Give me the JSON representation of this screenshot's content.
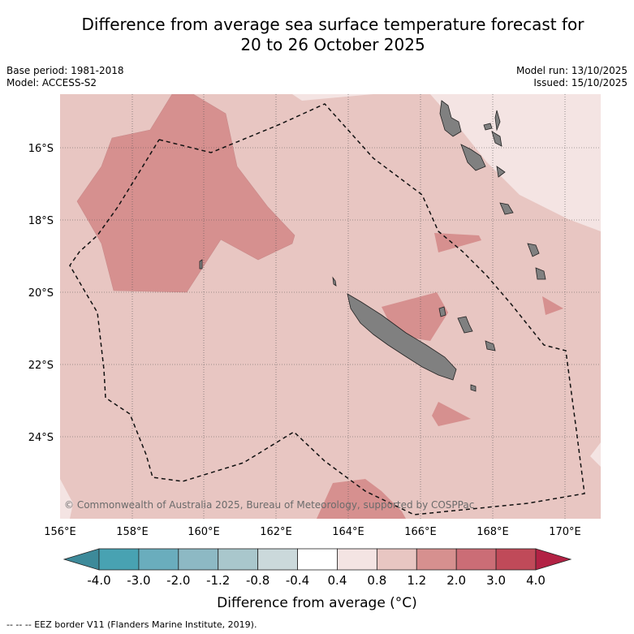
{
  "title_line1": "Difference from average sea surface temperature forecast for",
  "title_line2": "20 to 26 October 2025",
  "base_period": "Base period: 1981-2018",
  "model": "Model: ACCESS-S2",
  "model_run": "Model run: 13/10/2025",
  "issued": "Issued: 15/10/2025",
  "lon_labels": [
    "156°E",
    "158°E",
    "160°E",
    "162°E",
    "164°E",
    "166°E",
    "168°E",
    "170°E"
  ],
  "lat_labels": [
    "16°S",
    "18°S",
    "20°S",
    "22°S",
    "24°S"
  ],
  "copyright": "© Commonwealth of Australia 2025, Bureau of Meteorology, supported by COSPPac",
  "colorbar": {
    "title": "Difference from average (°C)",
    "tick_labels": [
      "-4.0",
      "-3.0",
      "-2.0",
      "-1.2",
      "-0.8",
      "-0.4",
      "0.4",
      "0.8",
      "1.2",
      "2.0",
      "3.0",
      "4.0"
    ],
    "colors": [
      "#3d8a9a",
      "#48a2b2",
      "#6aadbd",
      "#8db9c4",
      "#a9c7cc",
      "#cbd9db",
      "#ffffff",
      "#f4e4e3",
      "#e8c6c2",
      "#d6908f",
      "#cb6d76",
      "#c04a59",
      "#b22244"
    ]
  },
  "legend_note": "--  --  -- EEZ border V11 (Flanders Marine Institute, 2019)."
}
